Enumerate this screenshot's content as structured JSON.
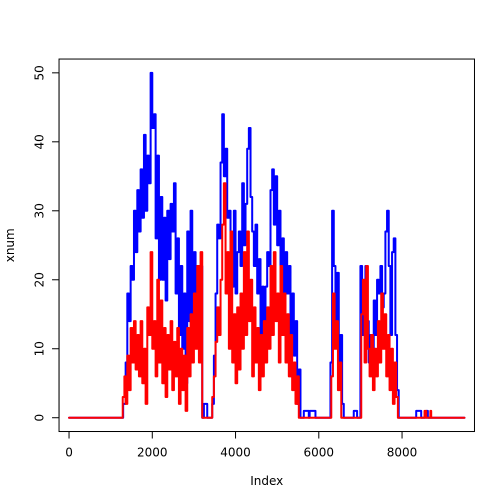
{
  "chart_data": {
    "type": "line",
    "title": "",
    "xlabel": "Index",
    "ylabel": "xnum",
    "xlim": [
      -240,
      9740
    ],
    "ylim": [
      -2,
      52
    ],
    "x_ticks": [
      0,
      2000,
      4000,
      6000,
      8000
    ],
    "y_ticks": [
      0,
      10,
      20,
      30,
      40,
      50
    ],
    "grid": false,
    "legend": "none",
    "series": [
      {
        "color": "#0000ff",
        "points": [
          [
            0,
            0
          ],
          [
            1250,
            0
          ],
          [
            1300,
            2
          ],
          [
            1360,
            8
          ],
          [
            1400,
            18
          ],
          [
            1440,
            14
          ],
          [
            1480,
            22
          ],
          [
            1520,
            20
          ],
          [
            1560,
            30
          ],
          [
            1600,
            24
          ],
          [
            1640,
            33
          ],
          [
            1680,
            27
          ],
          [
            1720,
            36
          ],
          [
            1760,
            29
          ],
          [
            1800,
            41
          ],
          [
            1840,
            30
          ],
          [
            1880,
            38
          ],
          [
            1920,
            34
          ],
          [
            1960,
            50
          ],
          [
            2000,
            42
          ],
          [
            2040,
            44
          ],
          [
            2080,
            26
          ],
          [
            2120,
            38
          ],
          [
            2160,
            20
          ],
          [
            2200,
            32
          ],
          [
            2240,
            20
          ],
          [
            2280,
            29
          ],
          [
            2320,
            17
          ],
          [
            2360,
            30
          ],
          [
            2400,
            23
          ],
          [
            2440,
            31
          ],
          [
            2480,
            27
          ],
          [
            2520,
            34
          ],
          [
            2560,
            18
          ],
          [
            2600,
            26
          ],
          [
            2640,
            12
          ],
          [
            2680,
            22
          ],
          [
            2720,
            10
          ],
          [
            2760,
            18
          ],
          [
            2800,
            5
          ],
          [
            2840,
            27
          ],
          [
            2880,
            14
          ],
          [
            2920,
            30
          ],
          [
            2960,
            13
          ],
          [
            3000,
            24
          ],
          [
            3040,
            17
          ],
          [
            3080,
            22
          ],
          [
            3120,
            12
          ],
          [
            3160,
            22
          ],
          [
            3200,
            0
          ],
          [
            3240,
            2
          ],
          [
            3280,
            2
          ],
          [
            3320,
            0
          ],
          [
            3400,
            0
          ],
          [
            3440,
            2
          ],
          [
            3480,
            9
          ],
          [
            3520,
            18
          ],
          [
            3560,
            28
          ],
          [
            3600,
            26
          ],
          [
            3640,
            37
          ],
          [
            3680,
            44
          ],
          [
            3720,
            35
          ],
          [
            3760,
            39
          ],
          [
            3800,
            29
          ],
          [
            3840,
            30
          ],
          [
            3880,
            23
          ],
          [
            3920,
            19
          ],
          [
            3960,
            30
          ],
          [
            4000,
            18
          ],
          [
            4040,
            24
          ],
          [
            4080,
            27
          ],
          [
            4120,
            22
          ],
          [
            4160,
            34
          ],
          [
            4200,
            25
          ],
          [
            4240,
            31
          ],
          [
            4280,
            39
          ],
          [
            4320,
            42
          ],
          [
            4360,
            32
          ],
          [
            4400,
            27
          ],
          [
            4440,
            22
          ],
          [
            4480,
            28
          ],
          [
            4520,
            18
          ],
          [
            4560,
            23
          ],
          [
            4600,
            12
          ],
          [
            4640,
            19
          ],
          [
            4680,
            14
          ],
          [
            4720,
            19
          ],
          [
            4760,
            24
          ],
          [
            4800,
            22
          ],
          [
            4840,
            33
          ],
          [
            4880,
            36
          ],
          [
            4920,
            28
          ],
          [
            4960,
            35
          ],
          [
            5000,
            25
          ],
          [
            5040,
            30
          ],
          [
            5080,
            20
          ],
          [
            5120,
            26
          ],
          [
            5160,
            16
          ],
          [
            5200,
            24
          ],
          [
            5240,
            18
          ],
          [
            5280,
            22
          ],
          [
            5320,
            12
          ],
          [
            5360,
            18
          ],
          [
            5400,
            9
          ],
          [
            5440,
            14
          ],
          [
            5480,
            2
          ],
          [
            5520,
            7
          ],
          [
            5560,
            0
          ],
          [
            5620,
            0
          ],
          [
            5640,
            1
          ],
          [
            5720,
            1
          ],
          [
            5760,
            0
          ],
          [
            5780,
            1
          ],
          [
            5880,
            1
          ],
          [
            5920,
            0
          ],
          [
            6240,
            0
          ],
          [
            6280,
            8
          ],
          [
            6320,
            30
          ],
          [
            6360,
            22
          ],
          [
            6400,
            14
          ],
          [
            6440,
            21
          ],
          [
            6480,
            8
          ],
          [
            6520,
            12
          ],
          [
            6560,
            2
          ],
          [
            6600,
            0
          ],
          [
            6800,
            0
          ],
          [
            6840,
            1
          ],
          [
            6880,
            1
          ],
          [
            6920,
            0
          ],
          [
            6960,
            0
          ],
          [
            7000,
            22
          ],
          [
            7040,
            12
          ],
          [
            7080,
            18
          ],
          [
            7120,
            22
          ],
          [
            7160,
            14
          ],
          [
            7200,
            8
          ],
          [
            7240,
            12
          ],
          [
            7280,
            10
          ],
          [
            7320,
            17
          ],
          [
            7360,
            12
          ],
          [
            7400,
            20
          ],
          [
            7440,
            18
          ],
          [
            7480,
            22
          ],
          [
            7520,
            16
          ],
          [
            7560,
            18
          ],
          [
            7600,
            27
          ],
          [
            7640,
            30
          ],
          [
            7680,
            22
          ],
          [
            7720,
            12
          ],
          [
            7760,
            24
          ],
          [
            7800,
            26
          ],
          [
            7840,
            12
          ],
          [
            7880,
            4
          ],
          [
            7920,
            0
          ],
          [
            8320,
            0
          ],
          [
            8340,
            1
          ],
          [
            8440,
            1
          ],
          [
            8460,
            0
          ],
          [
            8560,
            0
          ],
          [
            8580,
            1
          ],
          [
            8600,
            1
          ],
          [
            8620,
            0
          ],
          [
            9500,
            0
          ]
        ]
      },
      {
        "color": "#ff0000",
        "points": [
          [
            0,
            0
          ],
          [
            1260,
            0
          ],
          [
            1290,
            3
          ],
          [
            1330,
            6
          ],
          [
            1360,
            2
          ],
          [
            1400,
            9
          ],
          [
            1440,
            4
          ],
          [
            1480,
            13
          ],
          [
            1520,
            8
          ],
          [
            1560,
            14
          ],
          [
            1600,
            7
          ],
          [
            1640,
            12
          ],
          [
            1680,
            6
          ],
          [
            1720,
            14
          ],
          [
            1760,
            5
          ],
          [
            1800,
            10
          ],
          [
            1840,
            2
          ],
          [
            1880,
            16
          ],
          [
            1920,
            12
          ],
          [
            1960,
            24
          ],
          [
            2000,
            10
          ],
          [
            2040,
            14
          ],
          [
            2080,
            6
          ],
          [
            2120,
            20
          ],
          [
            2160,
            8
          ],
          [
            2200,
            17
          ],
          [
            2240,
            5
          ],
          [
            2280,
            13
          ],
          [
            2320,
            3
          ],
          [
            2360,
            12
          ],
          [
            2400,
            7
          ],
          [
            2440,
            14
          ],
          [
            2480,
            4
          ],
          [
            2520,
            11
          ],
          [
            2560,
            6
          ],
          [
            2600,
            13
          ],
          [
            2640,
            2
          ],
          [
            2680,
            10
          ],
          [
            2720,
            4
          ],
          [
            2760,
            9
          ],
          [
            2800,
            1
          ],
          [
            2840,
            13
          ],
          [
            2880,
            6
          ],
          [
            2920,
            15
          ],
          [
            2960,
            8
          ],
          [
            3000,
            18
          ],
          [
            3040,
            10
          ],
          [
            3080,
            22
          ],
          [
            3120,
            8
          ],
          [
            3160,
            24
          ],
          [
            3200,
            0
          ],
          [
            3280,
            0
          ],
          [
            3340,
            0
          ],
          [
            3400,
            0
          ],
          [
            3440,
            3
          ],
          [
            3480,
            6
          ],
          [
            3520,
            11
          ],
          [
            3560,
            16
          ],
          [
            3600,
            12
          ],
          [
            3640,
            20
          ],
          [
            3680,
            28
          ],
          [
            3720,
            34
          ],
          [
            3760,
            18
          ],
          [
            3800,
            24
          ],
          [
            3840,
            10
          ],
          [
            3880,
            27
          ],
          [
            3920,
            8
          ],
          [
            3960,
            15
          ],
          [
            4000,
            5
          ],
          [
            4040,
            16
          ],
          [
            4080,
            7
          ],
          [
            4120,
            18
          ],
          [
            4160,
            10
          ],
          [
            4200,
            24
          ],
          [
            4240,
            12
          ],
          [
            4280,
            27
          ],
          [
            4320,
            14
          ],
          [
            4360,
            20
          ],
          [
            4400,
            6
          ],
          [
            4440,
            16
          ],
          [
            4480,
            8
          ],
          [
            4520,
            13
          ],
          [
            4560,
            4
          ],
          [
            4600,
            12
          ],
          [
            4640,
            6
          ],
          [
            4680,
            14
          ],
          [
            4720,
            8
          ],
          [
            4760,
            16
          ],
          [
            4800,
            10
          ],
          [
            4840,
            22
          ],
          [
            4880,
            12
          ],
          [
            4920,
            24
          ],
          [
            4960,
            14
          ],
          [
            5000,
            18
          ],
          [
            5040,
            8
          ],
          [
            5080,
            22
          ],
          [
            5120,
            12
          ],
          [
            5160,
            18
          ],
          [
            5200,
            8
          ],
          [
            5240,
            15
          ],
          [
            5280,
            6
          ],
          [
            5320,
            12
          ],
          [
            5360,
            4
          ],
          [
            5400,
            8
          ],
          [
            5440,
            2
          ],
          [
            5480,
            6
          ],
          [
            5520,
            0
          ],
          [
            6260,
            0
          ],
          [
            6300,
            6
          ],
          [
            6340,
            18
          ],
          [
            6380,
            10
          ],
          [
            6420,
            14
          ],
          [
            6460,
            4
          ],
          [
            6500,
            8
          ],
          [
            6540,
            0
          ],
          [
            6940,
            0
          ],
          [
            6980,
            0
          ],
          [
            7020,
            15
          ],
          [
            7060,
            20
          ],
          [
            7100,
            8
          ],
          [
            7140,
            22
          ],
          [
            7180,
            10
          ],
          [
            7220,
            6
          ],
          [
            7260,
            12
          ],
          [
            7300,
            4
          ],
          [
            7340,
            10
          ],
          [
            7380,
            6
          ],
          [
            7420,
            14
          ],
          [
            7460,
            8
          ],
          [
            7500,
            18
          ],
          [
            7540,
            10
          ],
          [
            7580,
            15
          ],
          [
            7620,
            6
          ],
          [
            7660,
            12
          ],
          [
            7700,
            4
          ],
          [
            7740,
            10
          ],
          [
            7780,
            2
          ],
          [
            7820,
            8
          ],
          [
            7860,
            3
          ],
          [
            7900,
            0
          ],
          [
            8500,
            0
          ],
          [
            8540,
            1
          ],
          [
            8580,
            0
          ],
          [
            8660,
            0
          ],
          [
            8680,
            1
          ],
          [
            8700,
            0
          ],
          [
            9500,
            0
          ]
        ]
      }
    ]
  }
}
